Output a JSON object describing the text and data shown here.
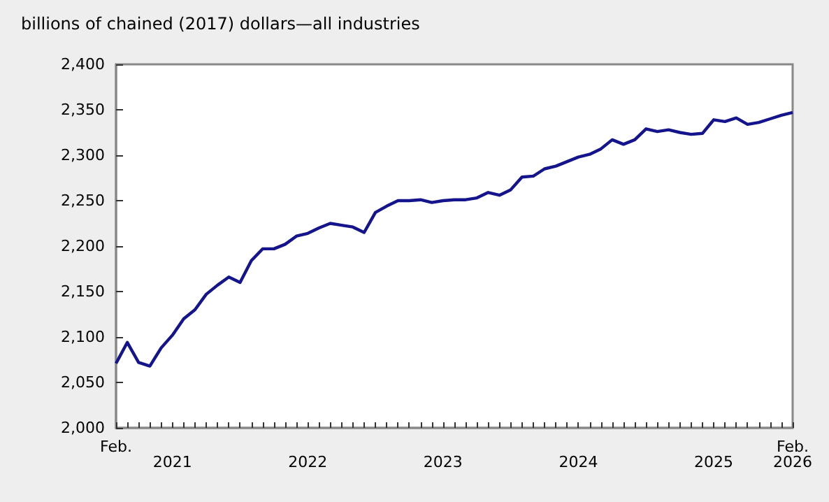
{
  "chart_data": {
    "type": "line",
    "ylabel": "billions of chained (2017) dollars—all industries",
    "categories": [
      "Feb.",
      null,
      null,
      null,
      null,
      "2021",
      null,
      null,
      null,
      null,
      null,
      null,
      null,
      null,
      null,
      null,
      null,
      "2022",
      null,
      null,
      null,
      null,
      null,
      null,
      null,
      null,
      null,
      null,
      null,
      "2023",
      null,
      null,
      null,
      null,
      null,
      null,
      null,
      null,
      null,
      null,
      null,
      "2024",
      null,
      null,
      null,
      null,
      null,
      null,
      null,
      null,
      null,
      null,
      null,
      "2025",
      null,
      null,
      null,
      null,
      null,
      null,
      "Feb. 2026"
    ],
    "series": [
      {
        "color": "#14148c",
        "values": [
          2071,
          2094,
          2072,
          2068,
          2088,
          2102,
          2120,
          2130,
          2147,
          2157,
          2166,
          2160,
          2184,
          2197,
          2197,
          2202,
          2211,
          2214,
          2220,
          2225,
          2223,
          2221,
          2215,
          2237,
          2244,
          2250,
          2250,
          2251,
          2248,
          2250,
          2251,
          2251,
          2253,
          2259,
          2256,
          2262,
          2276,
          2277,
          2285,
          2288,
          2293,
          2298,
          2301,
          2307,
          2317,
          2312,
          2317,
          2329,
          2326,
          2328,
          2325,
          2323,
          2324,
          2339,
          2337,
          2341,
          2334,
          2336,
          2340,
          2344,
          2347
        ]
      }
    ],
    "ylim": [
      2000,
      2400
    ],
    "yticks": [
      {
        "value": 2000,
        "label": "2,000"
      },
      {
        "value": 2050,
        "label": "2,050"
      },
      {
        "value": 2100,
        "label": "2,100"
      },
      {
        "value": 2150,
        "label": "2,150"
      },
      {
        "value": 2200,
        "label": "2,200"
      },
      {
        "value": 2250,
        "label": "2,250"
      },
      {
        "value": 2300,
        "label": "2,300"
      },
      {
        "value": 2350,
        "label": "2,350"
      },
      {
        "value": 2400,
        "label": "2,400"
      }
    ],
    "grid": false,
    "marker": "none",
    "line_style": "solid"
  }
}
